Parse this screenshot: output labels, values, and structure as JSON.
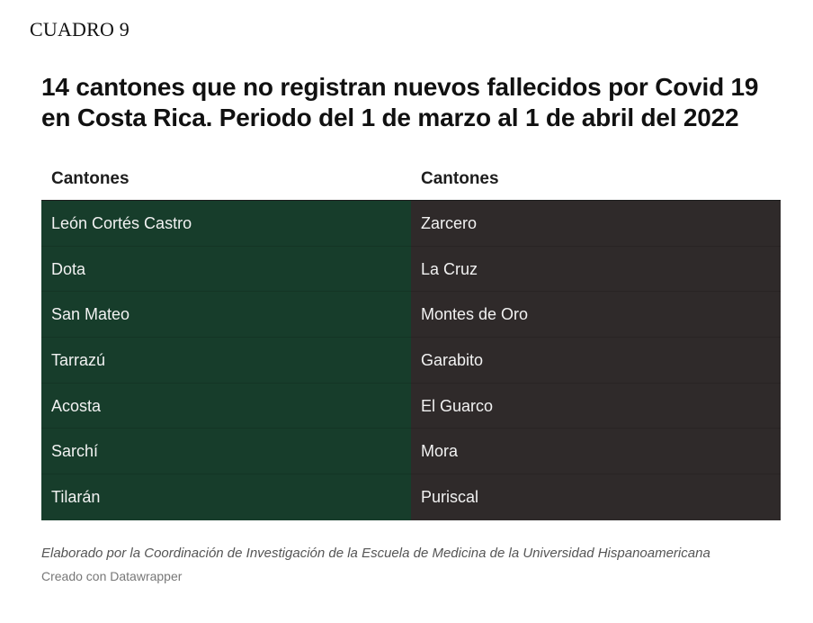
{
  "label": "CUADRO 9",
  "title": "14 cantones que no registran nuevos fallecidos por Covid 19 en Costa Rica. Periodo del 1 de marzo al 1 de abril del 2022",
  "table": {
    "headers": [
      "Cantones",
      "Cantones"
    ],
    "left_column": [
      "León Cortés Castro",
      "Dota",
      "San Mateo",
      "Tarrazú",
      "Acosta",
      "Sarchí",
      "Tilarán"
    ],
    "right_column": [
      "Zarcero",
      "La Cruz",
      "Montes de Oro",
      "Garabito",
      "El Guarco",
      "Mora",
      "Puriscal"
    ],
    "colors": {
      "left_background": "#173d2b",
      "right_background": "#2f2a2a",
      "cell_text": "#f2f2f2"
    }
  },
  "footer": {
    "note": "Elaborado por la Coordinación de Investigación de la Escuela de Medicina de la Universidad Hispanoamericana",
    "credit": "Creado con Datawrapper"
  }
}
